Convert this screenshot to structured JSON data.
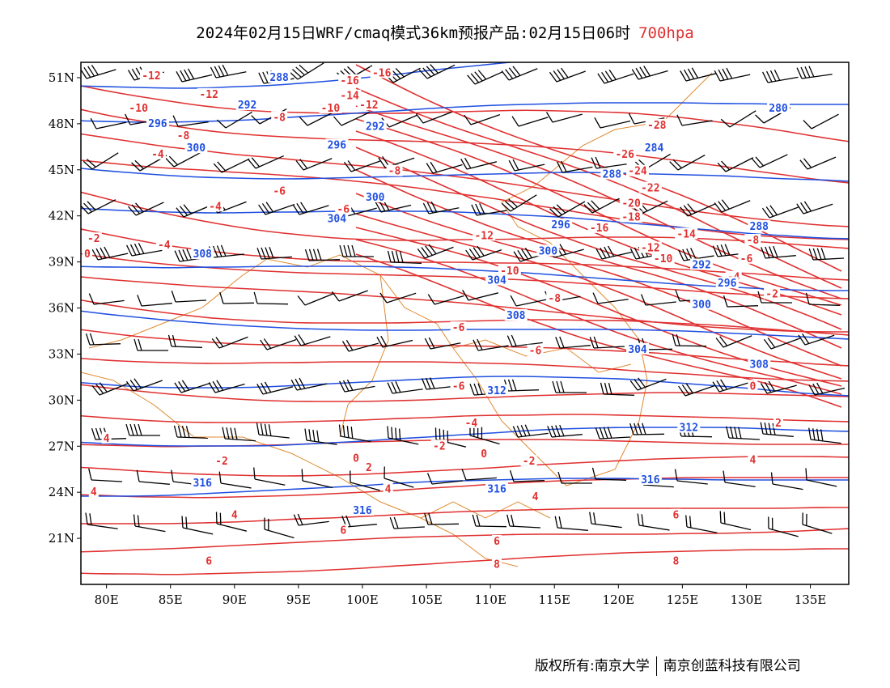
{
  "title": {
    "text": "2024年02月15日WRF/cmaq模式36km预报产品:02月15日06时",
    "level": "700hpa",
    "level_color": "#e03030"
  },
  "footer": {
    "owner": "版权所有:南京大学",
    "company": "南京创蓝科技有限公司"
  },
  "colors": {
    "temperature": "#e03030",
    "geopotential": "#2050e0",
    "boundary": "#e08a30",
    "wind": "#000000"
  },
  "axes": {
    "lon_labels": [
      "80E",
      "85E",
      "90E",
      "95E",
      "100E",
      "105E",
      "110E",
      "115E",
      "120E",
      "125E",
      "130E",
      "135E"
    ],
    "lon_values": [
      80,
      85,
      90,
      95,
      100,
      105,
      110,
      115,
      120,
      125,
      130,
      135
    ],
    "lat_labels": [
      "21N",
      "24N",
      "27N",
      "30N",
      "33N",
      "36N",
      "39N",
      "42N",
      "45N",
      "48N",
      "51N"
    ],
    "lat_values": [
      21,
      24,
      27,
      30,
      33,
      36,
      39,
      42,
      45,
      48,
      51
    ],
    "lon_range": [
      78,
      138
    ],
    "lat_range": [
      18,
      52
    ]
  },
  "height_labels": [
    {
      "text": "288",
      "lon": 93.5,
      "lat": 51.0
    },
    {
      "text": "292",
      "lon": 91.0,
      "lat": 49.2
    },
    {
      "text": "296",
      "lon": 84.0,
      "lat": 48.0
    },
    {
      "text": "300",
      "lon": 87.0,
      "lat": 46.4
    },
    {
      "text": "292",
      "lon": 101.0,
      "lat": 47.8
    },
    {
      "text": "296",
      "lon": 98.0,
      "lat": 46.6
    },
    {
      "text": "300",
      "lon": 101.0,
      "lat": 43.2
    },
    {
      "text": "304",
      "lon": 98.0,
      "lat": 41.8
    },
    {
      "text": "308",
      "lon": 87.5,
      "lat": 39.5
    },
    {
      "text": "296",
      "lon": 115.5,
      "lat": 41.4
    },
    {
      "text": "300",
      "lon": 114.5,
      "lat": 39.7
    },
    {
      "text": "304",
      "lon": 110.5,
      "lat": 37.8
    },
    {
      "text": "308",
      "lon": 112.0,
      "lat": 35.5
    },
    {
      "text": "312",
      "lon": 110.5,
      "lat": 30.6
    },
    {
      "text": "304",
      "lon": 121.5,
      "lat": 33.3
    },
    {
      "text": "300",
      "lon": 126.5,
      "lat": 36.2
    },
    {
      "text": "296",
      "lon": 128.5,
      "lat": 37.6
    },
    {
      "text": "292",
      "lon": 126.5,
      "lat": 38.8
    },
    {
      "text": "288",
      "lon": 131.0,
      "lat": 41.3
    },
    {
      "text": "288",
      "lon": 119.5,
      "lat": 44.7
    },
    {
      "text": "284",
      "lon": 122.8,
      "lat": 46.4
    },
    {
      "text": "280",
      "lon": 132.5,
      "lat": 49.0
    },
    {
      "text": "308",
      "lon": 131.0,
      "lat": 32.3
    },
    {
      "text": "312",
      "lon": 125.5,
      "lat": 28.2
    },
    {
      "text": "316",
      "lon": 122.5,
      "lat": 24.8
    },
    {
      "text": "316",
      "lon": 110.5,
      "lat": 24.2
    },
    {
      "text": "316",
      "lon": 100.0,
      "lat": 22.8
    },
    {
      "text": "316",
      "lon": 87.5,
      "lat": 24.6
    }
  ],
  "temperature_labels": [
    {
      "text": "-12",
      "lon": 83.5,
      "lat": 51.1
    },
    {
      "text": "-12",
      "lon": 88.0,
      "lat": 49.9
    },
    {
      "text": "-10",
      "lon": 82.5,
      "lat": 49.0
    },
    {
      "text": "-8",
      "lon": 86.0,
      "lat": 47.2
    },
    {
      "text": "-4",
      "lon": 84.0,
      "lat": 46.0
    },
    {
      "text": "-16",
      "lon": 101.5,
      "lat": 51.3
    },
    {
      "text": "-16",
      "lon": 99.0,
      "lat": 50.8
    },
    {
      "text": "-14",
      "lon": 99.0,
      "lat": 49.8
    },
    {
      "text": "-12",
      "lon": 100.5,
      "lat": 49.2
    },
    {
      "text": "-10",
      "lon": 97.5,
      "lat": 49.0
    },
    {
      "text": "-8",
      "lon": 93.5,
      "lat": 48.4
    },
    {
      "text": "-8",
      "lon": 102.5,
      "lat": 44.9
    },
    {
      "text": "-6",
      "lon": 93.5,
      "lat": 43.6
    },
    {
      "text": "-4",
      "lon": 88.5,
      "lat": 42.6
    },
    {
      "text": "-6",
      "lon": 98.5,
      "lat": 42.4
    },
    {
      "text": "-4",
      "lon": 84.5,
      "lat": 40.1
    },
    {
      "text": "-2",
      "lon": 79.0,
      "lat": 40.5
    },
    {
      "text": "0",
      "lon": 78.5,
      "lat": 39.5
    },
    {
      "text": "-28",
      "lon": 123.0,
      "lat": 47.9
    },
    {
      "text": "-26",
      "lon": 120.5,
      "lat": 46.0
    },
    {
      "text": "-24",
      "lon": 121.5,
      "lat": 44.9
    },
    {
      "text": "-22",
      "lon": 122.5,
      "lat": 43.8
    },
    {
      "text": "-20",
      "lon": 121.0,
      "lat": 42.8
    },
    {
      "text": "-18",
      "lon": 121.0,
      "lat": 41.9
    },
    {
      "text": "-16",
      "lon": 118.5,
      "lat": 41.2
    },
    {
      "text": "-14",
      "lon": 125.3,
      "lat": 40.8
    },
    {
      "text": "-12",
      "lon": 109.5,
      "lat": 40.7
    },
    {
      "text": "-12",
      "lon": 122.5,
      "lat": 39.9
    },
    {
      "text": "-10",
      "lon": 123.5,
      "lat": 39.2
    },
    {
      "text": "-10",
      "lon": 111.5,
      "lat": 38.4
    },
    {
      "text": "-8",
      "lon": 130.5,
      "lat": 40.4
    },
    {
      "text": "-6",
      "lon": 130.0,
      "lat": 39.2
    },
    {
      "text": "-4",
      "lon": 129.0,
      "lat": 38.0
    },
    {
      "text": "-2",
      "lon": 132.0,
      "lat": 36.9
    },
    {
      "text": "-8",
      "lon": 115.0,
      "lat": 36.6
    },
    {
      "text": "-6",
      "lon": 107.5,
      "lat": 34.7
    },
    {
      "text": "-6",
      "lon": 113.5,
      "lat": 33.2
    },
    {
      "text": "-6",
      "lon": 107.5,
      "lat": 30.9
    },
    {
      "text": "-4",
      "lon": 108.5,
      "lat": 28.5
    },
    {
      "text": "-2",
      "lon": 106.0,
      "lat": 27.0
    },
    {
      "text": "0",
      "lon": 109.5,
      "lat": 26.5
    },
    {
      "text": "-2",
      "lon": 113.0,
      "lat": 26.0
    },
    {
      "text": "0",
      "lon": 130.5,
      "lat": 30.9
    },
    {
      "text": "2",
      "lon": 132.5,
      "lat": 28.5
    },
    {
      "text": "4",
      "lon": 130.5,
      "lat": 26.1
    },
    {
      "text": "-2",
      "lon": 89.0,
      "lat": 26.0
    },
    {
      "text": "0",
      "lon": 99.5,
      "lat": 26.2
    },
    {
      "text": "2",
      "lon": 100.5,
      "lat": 25.6
    },
    {
      "text": "4",
      "lon": 102.0,
      "lat": 24.2
    },
    {
      "text": "4",
      "lon": 113.5,
      "lat": 23.7
    },
    {
      "text": "4",
      "lon": 80.0,
      "lat": 27.5
    },
    {
      "text": "4",
      "lon": 79.0,
      "lat": 24.0
    },
    {
      "text": "4",
      "lon": 90.0,
      "lat": 22.5
    },
    {
      "text": "6",
      "lon": 98.5,
      "lat": 21.5
    },
    {
      "text": "6",
      "lon": 124.5,
      "lat": 22.5
    },
    {
      "text": "6",
      "lon": 110.5,
      "lat": 20.8
    },
    {
      "text": "8",
      "lon": 110.5,
      "lat": 19.3
    },
    {
      "text": "8",
      "lon": 124.5,
      "lat": 19.5
    },
    {
      "text": "6",
      "lon": 88.0,
      "lat": 19.5
    }
  ]
}
